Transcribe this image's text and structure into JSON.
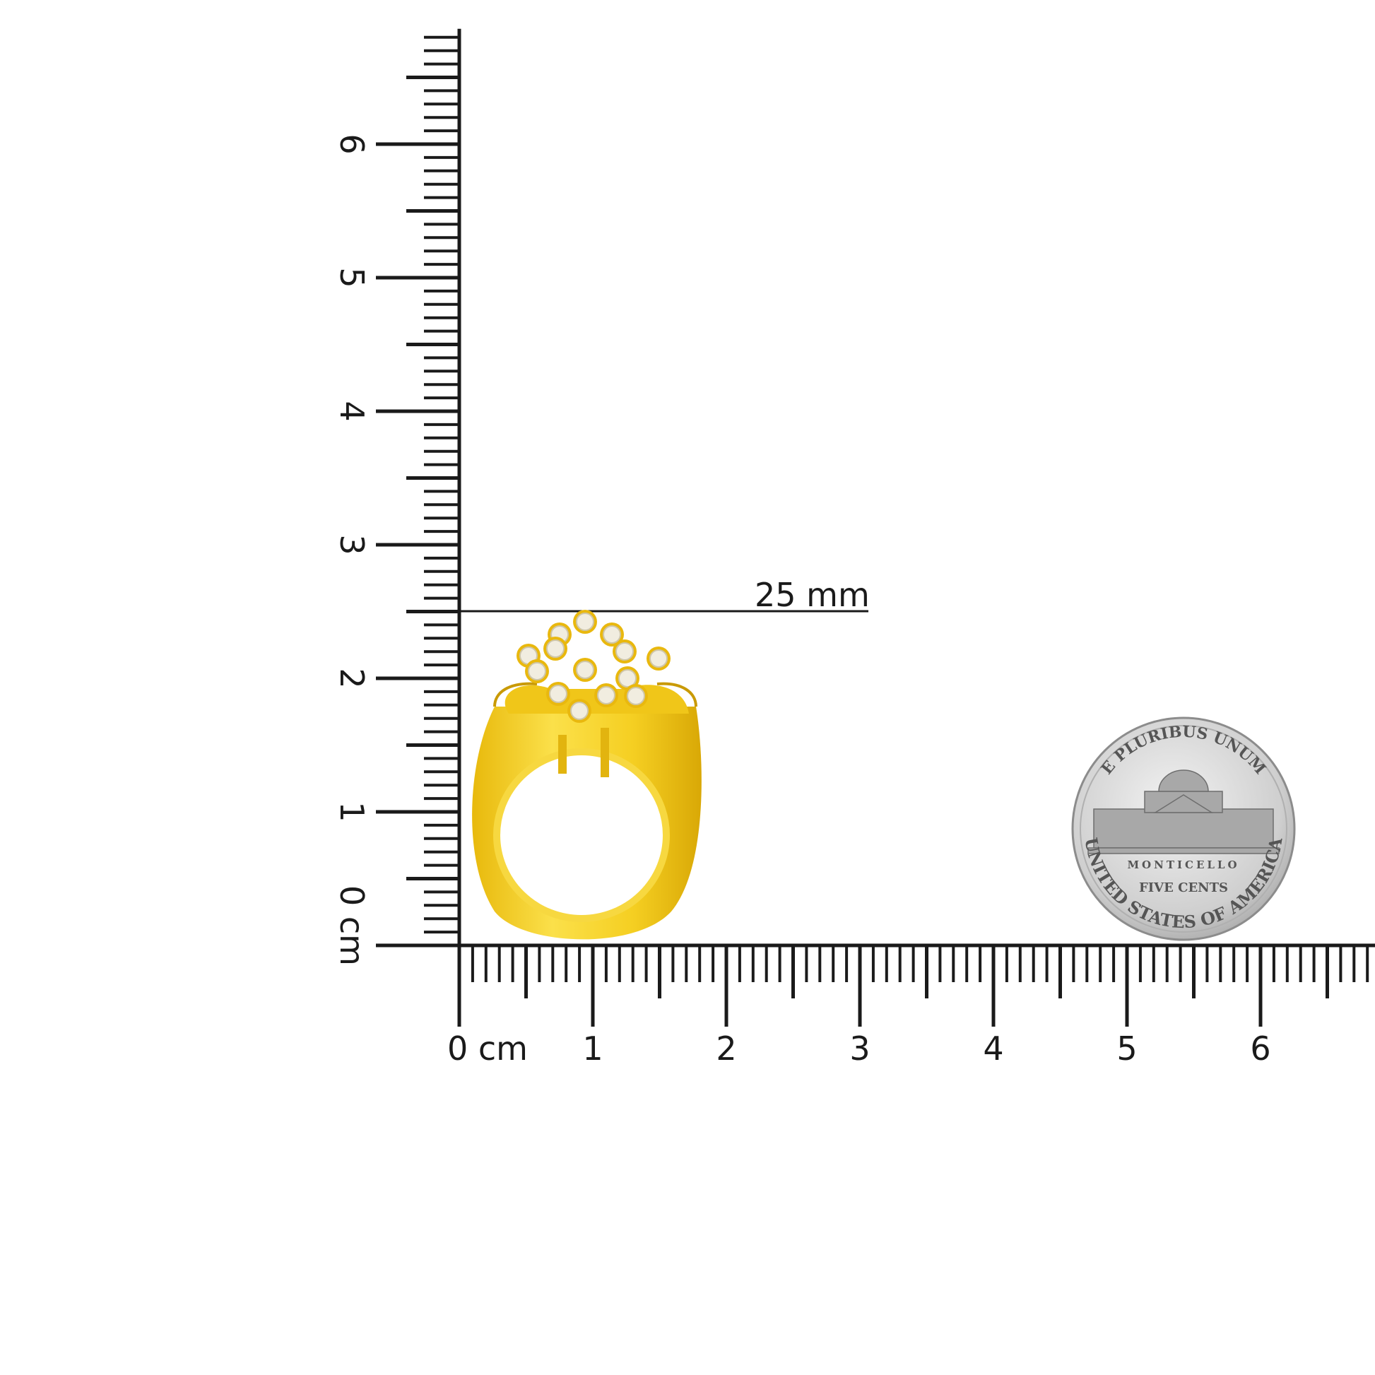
{
  "rulers": {
    "unit_label": "cm",
    "vertical": {
      "labels": [
        "0 cm",
        "1",
        "2",
        "3",
        "4",
        "5",
        "6"
      ],
      "max_mm": 68
    },
    "horizontal": {
      "labels": [
        "0 cm",
        "1",
        "2",
        "3",
        "4",
        "5",
        "6"
      ],
      "max_mm": 68
    },
    "tick_color": "#1a1a1a"
  },
  "measurement": {
    "label": "25 mm",
    "value_mm": 25
  },
  "ring": {
    "metal_color": "#f2cc1e",
    "stone_count": 14
  },
  "coin": {
    "top_text": "E PLURIBUS UNUM",
    "building_text": "MONTICELLO",
    "denomination": "FIVE CENTS",
    "bottom_text": "UNITED STATES OF AMERICA",
    "color": "#c9c9c9"
  }
}
